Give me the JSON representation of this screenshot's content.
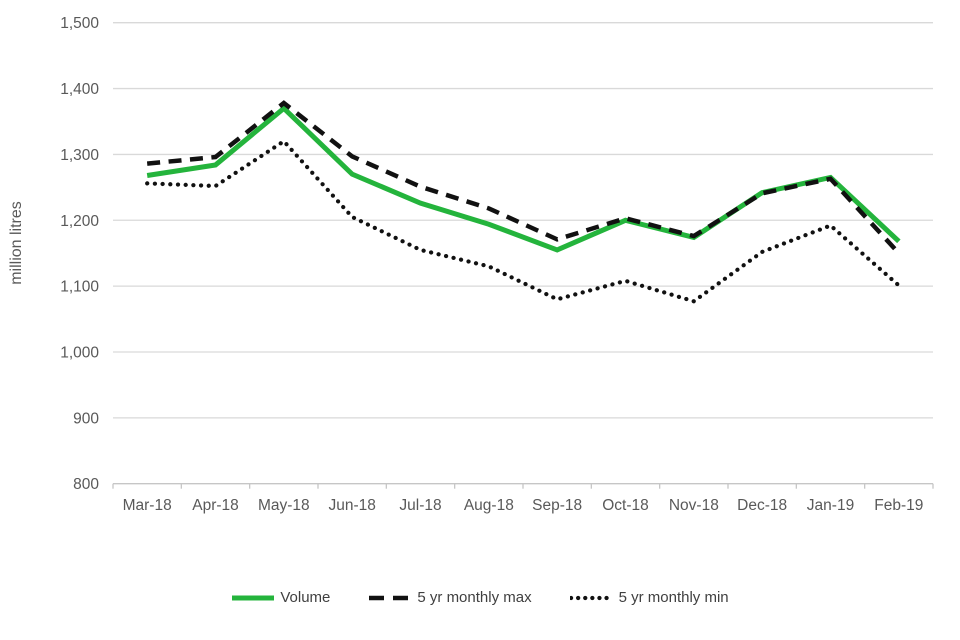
{
  "chart_data": {
    "type": "line",
    "title": "",
    "ylabel": "million litres",
    "xlabel": "",
    "categories": [
      "Mar-18",
      "Apr-18",
      "May-18",
      "Jun-18",
      "Jul-18",
      "Aug-18",
      "Sep-18",
      "Oct-18",
      "Nov-18",
      "Dec-18",
      "Jan-19",
      "Feb-19"
    ],
    "series": [
      {
        "name": "Volume",
        "style": "solid",
        "color": "#24B43C",
        "values": [
          1268,
          1284,
          1370,
          1270,
          1226,
          1194,
          1155,
          1200,
          1174,
          1242,
          1265,
          1168
        ]
      },
      {
        "name": "5 yr monthly max",
        "style": "dashed",
        "color": "#111111",
        "values": [
          1286,
          1296,
          1378,
          1297,
          1251,
          1218,
          1171,
          1203,
          1176,
          1241,
          1263,
          1150
        ]
      },
      {
        "name": "5 yr monthly min",
        "style": "dotted",
        "color": "#111111",
        "values": [
          1256,
          1252,
          1320,
          1205,
          1155,
          1130,
          1080,
          1108,
          1077,
          1152,
          1192,
          1101
        ]
      }
    ],
    "ylim": [
      800,
      1500
    ],
    "y_tick_step": 100,
    "y_tick_labels": [
      "1,500",
      "1,400",
      "1,300",
      "1,200",
      "1,100",
      "1,000",
      "900",
      "800"
    ],
    "grid": true,
    "legend_position": "bottom",
    "colors": {
      "gridline": "#D9D9D9",
      "axis_line": "#C6C6C6",
      "tick_text": "#595959",
      "axis_title_text": "#595959"
    }
  }
}
